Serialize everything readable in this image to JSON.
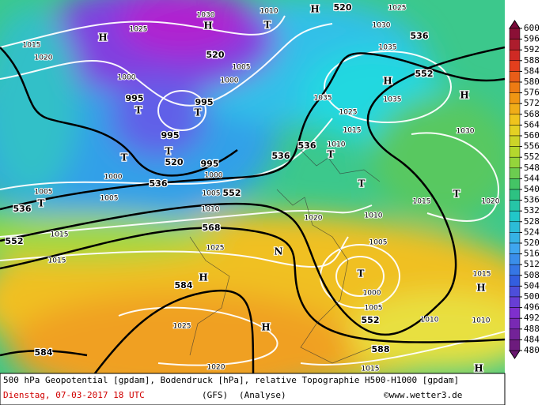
{
  "map": {
    "labels": [
      "520",
      "536",
      "552",
      "520",
      "536",
      "536",
      "520",
      "536",
      "552",
      "536",
      "552",
      "568",
      "584",
      "552",
      "588",
      "584",
      "1025",
      "1030",
      "1010",
      "1025",
      "1030",
      "1035",
      "1015",
      "1020",
      "1005",
      "1000",
      "1000",
      "995",
      "995",
      "1035",
      "1035",
      "1025",
      "1015",
      "1010",
      "1030",
      "995",
      "995",
      "1000",
      "1000",
      "1005",
      "1005",
      "1005",
      "1010",
      "1015",
      "1015",
      "1020",
      "1010",
      "1015",
      "1020",
      "1025",
      "1005",
      "1000",
      "1005",
      "1010",
      "1025",
      "1020",
      "1015",
      "1015",
      "1010",
      "H",
      "H",
      "H",
      "T",
      "T",
      "T",
      "T",
      "T",
      "T",
      "T",
      "T",
      "T",
      "H",
      "H",
      "H",
      "H",
      "N",
      "T",
      "H",
      "H"
    ]
  },
  "colorbar": {
    "levels": [
      600,
      596,
      592,
      588,
      584,
      580,
      576,
      572,
      568,
      564,
      560,
      556,
      552,
      548,
      544,
      540,
      536,
      532,
      528,
      524,
      520,
      516,
      512,
      508,
      504,
      500,
      496,
      492,
      488,
      484,
      480
    ]
  },
  "footer": {
    "title": "500 hPa Geopotential [gpdam], Bodendruck [hPa], relative Topographie H500-H1000 [gpdam]",
    "date": "Dienstag, 07-03-2017  18 UTC",
    "model": "(GFS)",
    "analysis": "(Analyse)",
    "credit": "©www.wetter3.de"
  }
}
